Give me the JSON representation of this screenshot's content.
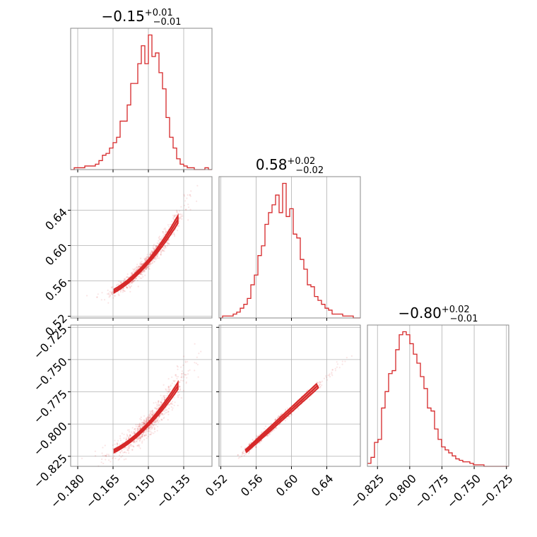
{
  "colors": {
    "accent": "#d62728",
    "grid": "#b0b0b0",
    "frame": "#888888"
  },
  "titles": [
    {
      "main": "−0.15",
      "sup": "+0.01",
      "sub": "−0.01"
    },
    {
      "main": "0.58",
      "sup": "+0.02",
      "sub": "−0.02"
    },
    {
      "main": "−0.80",
      "sup": "+0.02",
      "sub": "−0.01"
    }
  ],
  "chart_data": {
    "type": "corner",
    "parameters": [
      {
        "range": [
          -0.183,
          -0.123
        ],
        "ticks": [
          -0.18,
          -0.165,
          -0.15,
          -0.135
        ],
        "tick_labels": [
          "−0.180",
          "−0.165",
          "−0.150",
          "−0.135"
        ]
      },
      {
        "range": [
          0.518,
          0.678
        ],
        "ticks": [
          0.52,
          0.56,
          0.6,
          0.64
        ],
        "tick_labels": [
          "0.52",
          "0.56",
          "0.60",
          "0.64"
        ]
      },
      {
        "range": [
          -0.8328,
          -0.7232
        ],
        "ticks": [
          -0.825,
          -0.8,
          -0.775,
          -0.75,
          -0.725
        ],
        "tick_labels": [
          "−0.825",
          "−0.800",
          "−0.775",
          "−0.750",
          "−0.725"
        ]
      }
    ],
    "marginals": [
      {
        "param": 0,
        "counts": [
          0,
          1,
          1,
          1,
          2,
          2,
          2,
          3,
          5,
          8,
          9,
          12,
          15,
          18,
          27,
          27,
          36,
          48,
          48,
          59,
          69,
          59,
          75,
          63,
          65,
          54,
          45,
          29,
          18,
          12,
          6,
          3,
          2,
          1,
          1,
          0,
          0,
          0,
          1,
          0
        ]
      },
      {
        "param": 1,
        "counts": [
          0,
          1,
          1,
          1,
          2,
          3,
          5,
          7,
          10,
          17,
          22,
          32,
          37,
          48,
          54,
          58,
          63,
          54,
          69,
          52,
          56,
          43,
          41,
          30,
          25,
          17,
          16,
          11,
          9,
          7,
          5,
          4,
          2,
          2,
          2,
          1,
          1,
          1,
          0,
          0
        ]
      },
      {
        "param": 2,
        "counts": [
          2,
          6,
          16,
          18,
          39,
          50,
          62,
          64,
          78,
          88,
          90,
          88,
          82,
          75,
          69,
          60,
          52,
          39,
          37,
          25,
          18,
          13,
          11,
          9,
          7,
          5,
          4,
          3,
          3,
          2,
          1,
          1,
          1,
          0,
          0,
          0,
          0,
          0,
          0,
          0
        ]
      }
    ],
    "joint": [
      {
        "x_param": 0,
        "y_param": 1,
        "relation": "curved-positive"
      },
      {
        "x_param": 0,
        "y_param": 2,
        "relation": "curved-positive"
      },
      {
        "x_param": 1,
        "y_param": 2,
        "relation": "linear-positive"
      }
    ],
    "grid": true
  }
}
